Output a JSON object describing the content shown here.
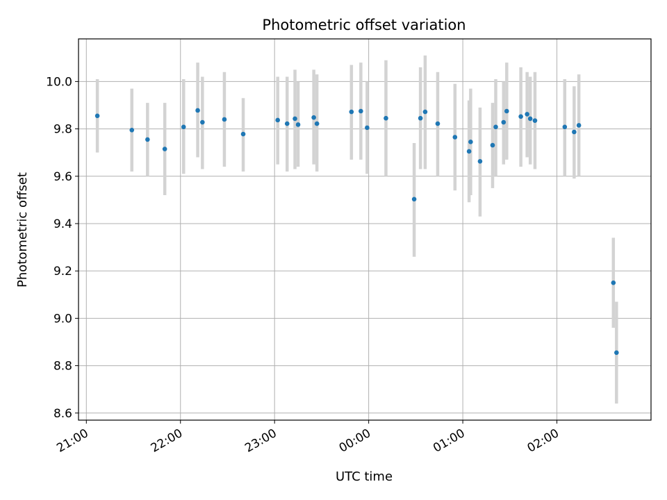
{
  "chart_data": {
    "type": "scatter",
    "title": "Photometric offset variation",
    "xlabel": "UTC time",
    "ylabel": "Photometric offset",
    "grid": true,
    "x_axis_type": "time",
    "x_start": "20:55",
    "x_end": "03:00",
    "x_ticks": [
      "21:00",
      "22:00",
      "23:00",
      "00:00",
      "01:00",
      "02:00"
    ],
    "ylim": [
      8.57,
      10.18
    ],
    "y_ticks": [
      8.6,
      8.8,
      9.0,
      9.2,
      9.4,
      9.6,
      9.8,
      10.0
    ],
    "y_tick_labels": [
      "8.6",
      "8.8",
      "9.0",
      "9.2",
      "9.4",
      "9.6",
      "9.8",
      "10.0"
    ],
    "series": [
      {
        "marker_color": "#1f77b4",
        "errorbar_color": "#d3d3d3",
        "points": [
          {
            "x": "21:07",
            "y": 9.855,
            "lo": 9.7,
            "hi": 10.01
          },
          {
            "x": "21:29",
            "y": 9.795,
            "lo": 9.62,
            "hi": 9.97
          },
          {
            "x": "21:39",
            "y": 9.755,
            "lo": 9.6,
            "hi": 9.91
          },
          {
            "x": "21:50",
            "y": 9.715,
            "lo": 9.52,
            "hi": 9.91
          },
          {
            "x": "22:02",
            "y": 9.808,
            "lo": 9.61,
            "hi": 10.01
          },
          {
            "x": "22:11",
            "y": 9.878,
            "lo": 9.68,
            "hi": 10.08
          },
          {
            "x": "22:14",
            "y": 9.828,
            "lo": 9.63,
            "hi": 10.02
          },
          {
            "x": "22:28",
            "y": 9.84,
            "lo": 9.64,
            "hi": 10.04
          },
          {
            "x": "22:40",
            "y": 9.778,
            "lo": 9.62,
            "hi": 9.93
          },
          {
            "x": "23:02",
            "y": 9.837,
            "lo": 9.65,
            "hi": 10.02
          },
          {
            "x": "23:08",
            "y": 9.822,
            "lo": 9.62,
            "hi": 10.02
          },
          {
            "x": "23:13",
            "y": 9.843,
            "lo": 9.63,
            "hi": 10.05
          },
          {
            "x": "23:15",
            "y": 9.818,
            "lo": 9.64,
            "hi": 10.0
          },
          {
            "x": "23:25",
            "y": 9.848,
            "lo": 9.65,
            "hi": 10.05
          },
          {
            "x": "23:27",
            "y": 9.822,
            "lo": 9.62,
            "hi": 10.03
          },
          {
            "x": "23:49",
            "y": 9.872,
            "lo": 9.67,
            "hi": 10.07
          },
          {
            "x": "23:55",
            "y": 9.875,
            "lo": 9.67,
            "hi": 10.08
          },
          {
            "x": "23:59",
            "y": 9.805,
            "lo": 9.61,
            "hi": 10.0
          },
          {
            "x": "00:11",
            "y": 9.845,
            "lo": 9.6,
            "hi": 10.09
          },
          {
            "x": "00:29",
            "y": 9.503,
            "lo": 9.26,
            "hi": 9.74
          },
          {
            "x": "00:33",
            "y": 9.845,
            "lo": 9.63,
            "hi": 10.06
          },
          {
            "x": "00:36",
            "y": 9.872,
            "lo": 9.63,
            "hi": 10.11
          },
          {
            "x": "00:44",
            "y": 9.822,
            "lo": 9.6,
            "hi": 10.04
          },
          {
            "x": "00:55",
            "y": 9.765,
            "lo": 9.54,
            "hi": 9.99
          },
          {
            "x": "01:04",
            "y": 9.705,
            "lo": 9.49,
            "hi": 9.92
          },
          {
            "x": "01:05",
            "y": 9.745,
            "lo": 9.52,
            "hi": 9.97
          },
          {
            "x": "01:11",
            "y": 9.663,
            "lo": 9.43,
            "hi": 9.89
          },
          {
            "x": "01:19",
            "y": 9.731,
            "lo": 9.55,
            "hi": 9.91
          },
          {
            "x": "01:21",
            "y": 9.808,
            "lo": 9.6,
            "hi": 10.01
          },
          {
            "x": "01:26",
            "y": 9.828,
            "lo": 9.65,
            "hi": 10.0
          },
          {
            "x": "01:28",
            "y": 9.875,
            "lo": 9.67,
            "hi": 10.08
          },
          {
            "x": "01:37",
            "y": 9.852,
            "lo": 9.64,
            "hi": 10.06
          },
          {
            "x": "01:41",
            "y": 9.862,
            "lo": 9.68,
            "hi": 10.04
          },
          {
            "x": "01:43",
            "y": 9.843,
            "lo": 9.65,
            "hi": 10.02
          },
          {
            "x": "01:46",
            "y": 9.835,
            "lo": 9.63,
            "hi": 10.04
          },
          {
            "x": "02:05",
            "y": 9.808,
            "lo": 9.6,
            "hi": 10.01
          },
          {
            "x": "02:11",
            "y": 9.787,
            "lo": 9.59,
            "hi": 9.98
          },
          {
            "x": "02:14",
            "y": 9.815,
            "lo": 9.6,
            "hi": 10.03
          },
          {
            "x": "02:36",
            "y": 9.15,
            "lo": 8.96,
            "hi": 9.34
          },
          {
            "x": "02:38",
            "y": 8.855,
            "lo": 8.64,
            "hi": 9.07
          }
        ]
      }
    ]
  }
}
